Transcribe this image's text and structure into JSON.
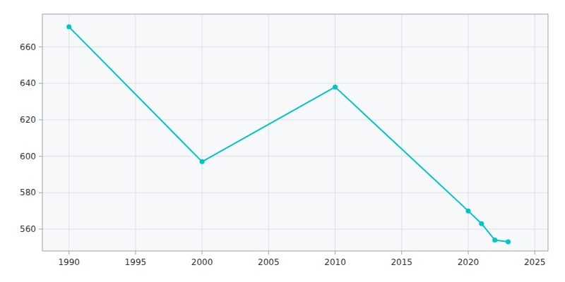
{
  "chart_data": {
    "type": "line",
    "x": [
      1990,
      2000,
      2010,
      2020,
      2021,
      2022,
      2023
    ],
    "values": [
      671,
      597,
      638,
      570,
      563,
      554,
      553
    ],
    "color": "#00C5C5",
    "marker": "circle",
    "xlim": [
      1988,
      2026
    ],
    "ylim": [
      548,
      678
    ],
    "xticks": [
      1990,
      1995,
      2000,
      2005,
      2010,
      2015,
      2020,
      2025
    ],
    "yticks": [
      560,
      580,
      600,
      620,
      640,
      660
    ],
    "grid": true
  }
}
